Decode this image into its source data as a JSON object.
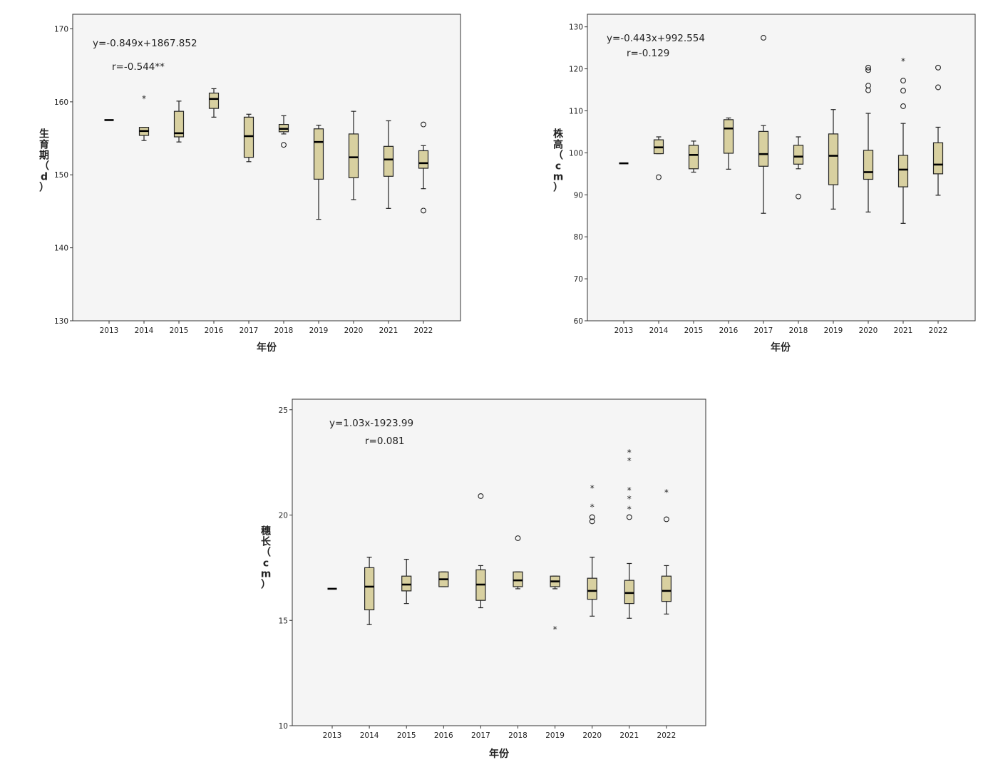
{
  "chart_data": [
    {
      "type": "box",
      "xlabel": "年份",
      "ylabel": "生育期（d）",
      "ylim": [
        130,
        172
      ],
      "yticks": [
        130,
        140,
        150,
        160,
        170
      ],
      "annotation": [
        "y=-0.849x+1867.852",
        "r=-0.544**"
      ],
      "categories": [
        "2013",
        "2014",
        "2015",
        "2016",
        "2017",
        "2018",
        "2019",
        "2020",
        "2021",
        "2022"
      ],
      "boxes": [
        {
          "min": 157.5,
          "q1": 157.5,
          "median": 157.5,
          "q3": 157.5,
          "max": 157.5,
          "outliers": [],
          "extremes": []
        },
        {
          "min": 154.7,
          "q1": 155.4,
          "median": 156.0,
          "q3": 156.5,
          "max": 156.5,
          "outliers": [],
          "extremes": [
            160.5
          ]
        },
        {
          "min": 154.5,
          "q1": 155.2,
          "median": 155.7,
          "q3": 158.7,
          "max": 160.1,
          "outliers": [],
          "extremes": []
        },
        {
          "min": 157.9,
          "q1": 159.1,
          "median": 160.4,
          "q3": 161.2,
          "max": 161.8,
          "outliers": [],
          "extremes": []
        },
        {
          "min": 151.8,
          "q1": 152.4,
          "median": 155.3,
          "q3": 157.9,
          "max": 158.3,
          "outliers": [],
          "extremes": []
        },
        {
          "min": 155.6,
          "q1": 155.9,
          "median": 156.3,
          "q3": 156.9,
          "max": 158.1,
          "outliers": [
            154.1
          ],
          "extremes": []
        },
        {
          "min": 143.9,
          "q1": 149.4,
          "median": 154.5,
          "q3": 156.3,
          "max": 156.8,
          "outliers": [],
          "extremes": []
        },
        {
          "min": 146.6,
          "q1": 149.6,
          "median": 152.4,
          "q3": 155.6,
          "max": 158.7,
          "outliers": [],
          "extremes": []
        },
        {
          "min": 145.4,
          "q1": 149.8,
          "median": 152.1,
          "q3": 153.9,
          "max": 157.4,
          "outliers": [],
          "extremes": []
        },
        {
          "min": 148.1,
          "q1": 150.9,
          "median": 151.6,
          "q3": 153.3,
          "max": 154.0,
          "outliers": [
            156.9,
            145.1
          ],
          "extremes": []
        }
      ]
    },
    {
      "type": "box",
      "xlabel": "年份",
      "ylabel": "株高（cm）",
      "ylim": [
        60,
        133
      ],
      "yticks": [
        60,
        70,
        80,
        90,
        100,
        110,
        120,
        130
      ],
      "annotation": [
        "y=-0.443x+992.554",
        "r=-0.129"
      ],
      "categories": [
        "2013",
        "2014",
        "2015",
        "2016",
        "2017",
        "2018",
        "2019",
        "2020",
        "2021",
        "2022"
      ],
      "boxes": [
        {
          "min": 97.5,
          "q1": 97.5,
          "median": 97.5,
          "q3": 97.5,
          "max": 97.5,
          "outliers": [],
          "extremes": []
        },
        {
          "min": 99.8,
          "q1": 99.8,
          "median": 101.3,
          "q3": 103.1,
          "max": 103.8,
          "outliers": [
            94.2
          ],
          "extremes": []
        },
        {
          "min": 95.4,
          "q1": 96.2,
          "median": 99.5,
          "q3": 101.8,
          "max": 102.8,
          "outliers": [],
          "extremes": []
        },
        {
          "min": 96.1,
          "q1": 99.9,
          "median": 105.8,
          "q3": 107.9,
          "max": 108.3,
          "outliers": [],
          "extremes": []
        },
        {
          "min": 85.6,
          "q1": 96.8,
          "median": 99.7,
          "q3": 105.1,
          "max": 106.5,
          "outliers": [
            127.4
          ],
          "extremes": []
        },
        {
          "min": 96.2,
          "q1": 97.3,
          "median": 99.1,
          "q3": 101.8,
          "max": 103.8,
          "outliers": [
            89.6
          ],
          "extremes": []
        },
        {
          "min": 86.6,
          "q1": 92.4,
          "median": 99.3,
          "q3": 104.5,
          "max": 110.3,
          "outliers": [],
          "extremes": []
        },
        {
          "min": 85.9,
          "q1": 93.7,
          "median": 95.4,
          "q3": 100.6,
          "max": 109.4,
          "outliers": [
            120.3,
            119.7,
            116.0,
            114.9
          ],
          "extremes": []
        },
        {
          "min": 83.2,
          "q1": 91.9,
          "median": 96.0,
          "q3": 99.4,
          "max": 107.0,
          "outliers": [
            117.2,
            114.8,
            111.1
          ],
          "extremes": [
            122.0
          ]
        },
        {
          "min": 89.9,
          "q1": 95.0,
          "median": 97.2,
          "q3": 102.4,
          "max": 106.1,
          "outliers": [
            120.3,
            115.6
          ],
          "extremes": []
        }
      ]
    },
    {
      "type": "box",
      "xlabel": "年份",
      "ylabel": "穗长（cm）",
      "ylim": [
        10,
        25.5
      ],
      "yticks": [
        10,
        15,
        20,
        25
      ],
      "annotation": [
        "y=1.03x-1923.99",
        "r=0.081"
      ],
      "categories": [
        "2013",
        "2014",
        "2015",
        "2016",
        "2017",
        "2018",
        "2019",
        "2020",
        "2021",
        "2022"
      ],
      "boxes": [
        {
          "min": 16.5,
          "q1": 16.5,
          "median": 16.5,
          "q3": 16.5,
          "max": 16.5,
          "outliers": [],
          "extremes": []
        },
        {
          "min": 14.8,
          "q1": 15.5,
          "median": 16.6,
          "q3": 17.5,
          "max": 18.0,
          "outliers": [],
          "extremes": []
        },
        {
          "min": 15.8,
          "q1": 16.4,
          "median": 16.7,
          "q3": 17.1,
          "max": 17.9,
          "outliers": [],
          "extremes": []
        },
        {
          "min": 16.6,
          "q1": 16.6,
          "median": 16.95,
          "q3": 17.3,
          "max": 17.3,
          "outliers": [],
          "extremes": []
        },
        {
          "min": 15.6,
          "q1": 15.95,
          "median": 16.7,
          "q3": 17.4,
          "max": 17.6,
          "outliers": [
            20.9
          ],
          "extremes": []
        },
        {
          "min": 16.5,
          "q1": 16.6,
          "median": 16.9,
          "q3": 17.3,
          "max": 17.3,
          "outliers": [
            18.9
          ],
          "extremes": []
        },
        {
          "min": 16.5,
          "q1": 16.6,
          "median": 16.85,
          "q3": 17.1,
          "max": 17.1,
          "outliers": [],
          "extremes": [
            14.6
          ]
        },
        {
          "min": 15.2,
          "q1": 16.0,
          "median": 16.4,
          "q3": 17.0,
          "max": 18.0,
          "outliers": [
            19.9,
            19.7
          ],
          "extremes": [
            21.3,
            20.4
          ]
        },
        {
          "min": 15.1,
          "q1": 15.8,
          "median": 16.3,
          "q3": 16.9,
          "max": 17.7,
          "outliers": [
            19.9
          ],
          "extremes": [
            23.0,
            22.6,
            21.2,
            20.8,
            20.3
          ]
        },
        {
          "min": 15.3,
          "q1": 15.9,
          "median": 16.4,
          "q3": 17.1,
          "max": 17.6,
          "outliers": [
            19.8
          ],
          "extremes": [
            21.1
          ]
        }
      ]
    }
  ]
}
